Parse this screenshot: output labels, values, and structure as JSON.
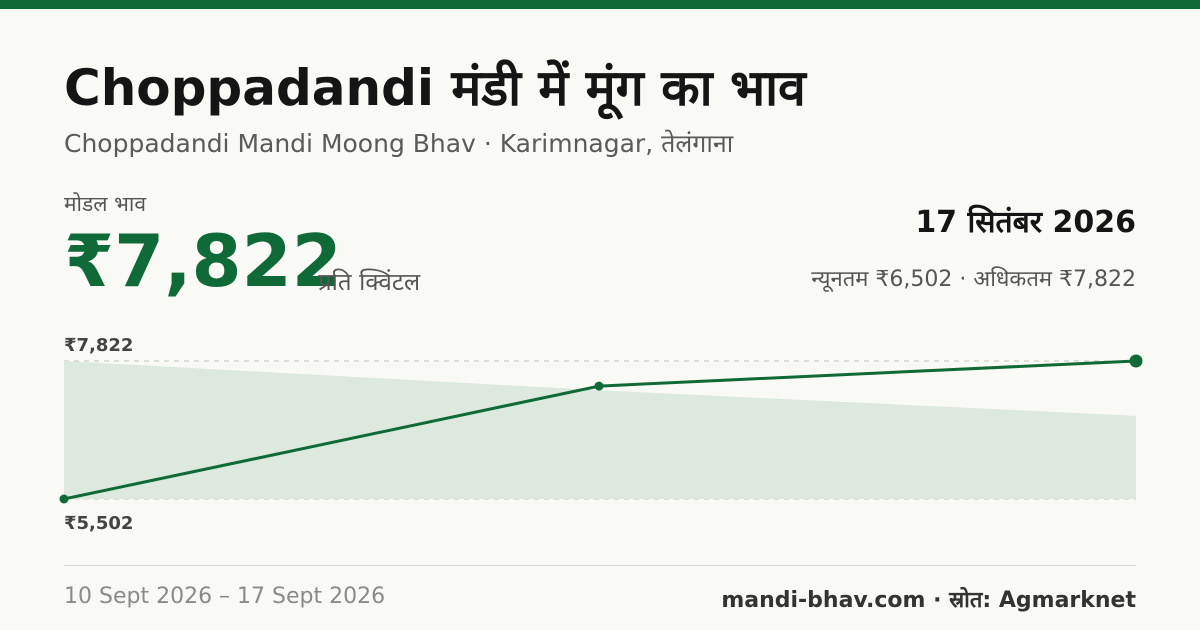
{
  "header": {
    "title": "Choppadandi मंडी में मूंग का भाव",
    "subtitle": "Choppadandi Mandi Moong Bhav · Karimnagar, तेलंगाना"
  },
  "price": {
    "label": "मोडल भाव",
    "value": "₹7,822",
    "unit": "प्रति क्विंटल",
    "date": "17 सितंबर 2026",
    "minmax": "न्यूनतम ₹6,502 · अधिकतम ₹7,822"
  },
  "footer": {
    "range": "10 Sept 2026 – 17 Sept 2026",
    "source": "mandi-bhav.com · स्रोत: Agmarknet"
  },
  "colors": {
    "accent": "#0f6a37",
    "band": "#dde8df"
  },
  "chart_data": {
    "type": "line",
    "x": [
      "10 Sept 2026",
      "13 Sept 2026",
      "17 Sept 2026"
    ],
    "series": [
      {
        "values": [
          5502,
          7400,
          7822
        ]
      }
    ],
    "band": {
      "upper": [
        7822,
        7330,
        6900
      ],
      "lower": [
        5502,
        5502,
        5502
      ]
    },
    "yticks": [
      {
        "value": 7822,
        "label": "₹7,822"
      },
      {
        "value": 5502,
        "label": "₹5,502"
      }
    ],
    "ylim": [
      5502,
      7822
    ],
    "grid": true,
    "legend": "none"
  }
}
